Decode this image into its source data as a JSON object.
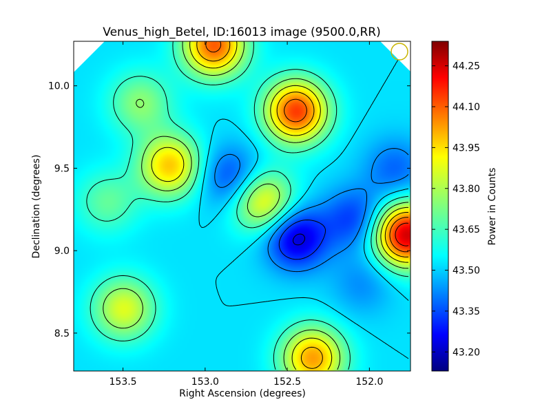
{
  "chart_data": {
    "type": "heatmap",
    "title": "Venus_high_Betel, ID:16013 image (9500.0,RR)",
    "xlabel": "Right Ascension (degrees)",
    "ylabel": "Declination (degrees)",
    "xlim": [
      153.8,
      151.75
    ],
    "ylim": [
      8.27,
      10.27
    ],
    "x_ticks": [
      "153.5",
      "153.0",
      "152.5",
      "152.0"
    ],
    "x_tick_values": [
      153.5,
      153.0,
      152.5,
      152.0
    ],
    "y_ticks": [
      "8.5",
      "9.0",
      "9.5",
      "10.0"
    ],
    "y_tick_values": [
      8.5,
      9.0,
      9.5,
      10.0
    ],
    "colorbar": {
      "label": "Power in Counts",
      "range": [
        43.13,
        44.34
      ],
      "colormap": "jet",
      "ticks": [
        "43.20",
        "43.35",
        "43.50",
        "43.65",
        "43.80",
        "43.95",
        "44.10",
        "44.25"
      ],
      "tick_values": [
        43.2,
        43.35,
        43.5,
        43.65,
        43.8,
        43.95,
        44.1,
        44.25
      ]
    },
    "background_level": 43.55,
    "features": [
      {
        "ra": 152.45,
        "dec": 9.85,
        "value": 44.12
      },
      {
        "ra": 152.45,
        "dec": 9.08,
        "value": 43.22
      },
      {
        "ra": 151.78,
        "dec": 9.1,
        "value": 44.25
      },
      {
        "ra": 152.95,
        "dec": 10.25,
        "value": 44.08
      },
      {
        "ra": 152.85,
        "dec": 9.45,
        "value": 43.35
      },
      {
        "ra": 152.65,
        "dec": 9.3,
        "value": 43.9
      },
      {
        "ra": 153.22,
        "dec": 9.52,
        "value": 43.95
      },
      {
        "ra": 152.35,
        "dec": 8.35,
        "value": 44.0
      },
      {
        "ra": 153.5,
        "dec": 8.65,
        "value": 43.85
      },
      {
        "ra": 152.1,
        "dec": 9.2,
        "value": 43.35
      },
      {
        "ra": 151.85,
        "dec": 9.5,
        "value": 43.4
      },
      {
        "ra": 153.6,
        "dec": 9.3,
        "value": 43.7
      },
      {
        "ra": 153.4,
        "dec": 9.9,
        "value": 43.75
      },
      {
        "ra": 152.05,
        "dec": 8.8,
        "value": 43.45
      }
    ],
    "beam_marker": {
      "ra": 151.82,
      "dec": 10.21,
      "color": "#c8b400"
    },
    "grid": false,
    "legend": "none"
  }
}
